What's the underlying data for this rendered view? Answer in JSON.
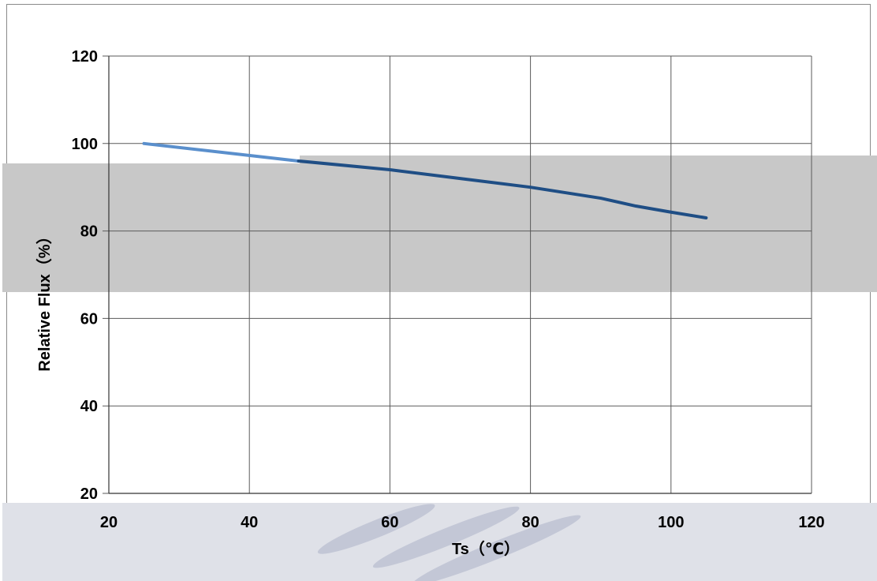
{
  "chart_data": {
    "type": "line",
    "xlabel": "Ts（℃）",
    "ylabel": "Relative Flux（%）",
    "xlim": [
      20,
      120
    ],
    "ylim": [
      20,
      120
    ],
    "x_ticks": [
      "20",
      "40",
      "60",
      "80",
      "100",
      "120"
    ],
    "y_ticks": [
      "20",
      "40",
      "60",
      "80",
      "100",
      "120"
    ],
    "grid": true,
    "series": [
      {
        "x": [
          25,
          47,
          60,
          70,
          80,
          90,
          95,
          100,
          105
        ],
        "y": [
          100,
          96,
          94,
          92,
          90,
          87.5,
          85.7,
          84.3,
          83
        ],
        "color_light": "#5a8fcc",
        "color_dark": "#1f4e85"
      }
    ]
  }
}
